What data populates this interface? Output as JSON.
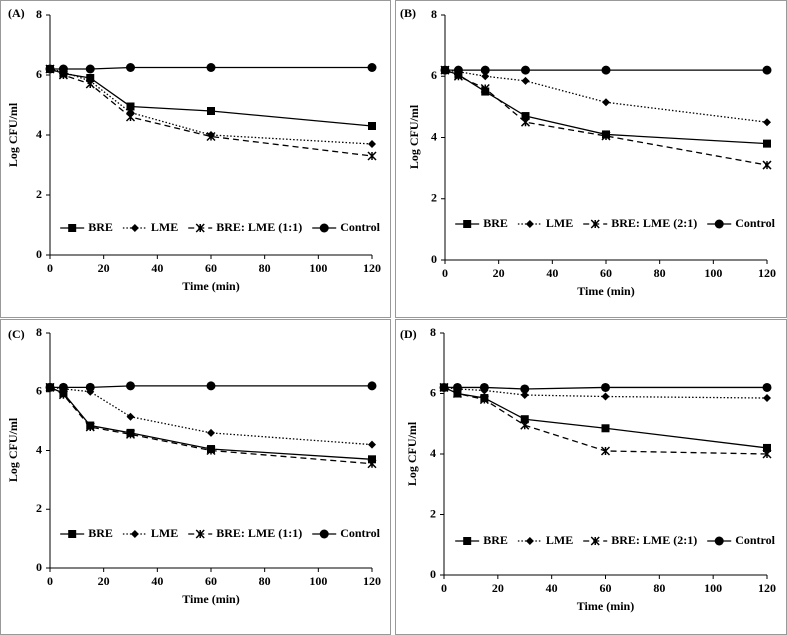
{
  "chart_data": [
    {
      "type": "line",
      "panel_label": "(A)",
      "x_label": "Time (min)",
      "y_label": "Log CFU/ml",
      "x": [
        0,
        5,
        15,
        30,
        60,
        120
      ],
      "xlim": [
        0,
        120
      ],
      "xticks": [
        0,
        20,
        40,
        60,
        80,
        100,
        120
      ],
      "ylim": [
        0,
        8
      ],
      "yticks": [
        0,
        2,
        4,
        6,
        8
      ],
      "legend": "bottom",
      "series": [
        {
          "name": "BRE",
          "color": "#000000",
          "dash": "solid",
          "marker": "square",
          "values": [
            6.2,
            6.05,
            5.9,
            4.95,
            4.8,
            4.3
          ]
        },
        {
          "name": "LME",
          "color": "#000000",
          "dash": "dotted",
          "marker": "diamond",
          "values": [
            6.2,
            6.1,
            5.8,
            4.75,
            4.0,
            3.7
          ]
        },
        {
          "name": "BRE: LME (1:1)",
          "color": "#000000",
          "dash": "dashed",
          "marker": "star",
          "values": [
            6.2,
            6.0,
            5.7,
            4.6,
            3.95,
            3.3
          ]
        },
        {
          "name": "Control",
          "color": "#000000",
          "dash": "solid",
          "marker": "circle",
          "values": [
            6.2,
            6.2,
            6.2,
            6.25,
            6.25,
            6.25
          ]
        }
      ]
    },
    {
      "type": "line",
      "panel_label": "(B)",
      "x_label": "Time (min)",
      "y_label": "Log CFU/ml",
      "x": [
        0,
        5,
        15,
        30,
        60,
        120
      ],
      "xlim": [
        0,
        120
      ],
      "xticks": [
        0,
        20,
        40,
        60,
        80,
        100,
        120
      ],
      "ylim": [
        0,
        8
      ],
      "yticks": [
        0,
        2,
        4,
        6,
        8
      ],
      "legend": "bottom",
      "series": [
        {
          "name": "BRE",
          "color": "#000000",
          "dash": "solid",
          "marker": "square",
          "values": [
            6.2,
            6.05,
            5.5,
            4.7,
            4.1,
            3.8
          ]
        },
        {
          "name": "LME",
          "color": "#000000",
          "dash": "dotted",
          "marker": "diamond",
          "values": [
            6.2,
            6.15,
            6.0,
            5.85,
            5.15,
            4.5
          ]
        },
        {
          "name": "BRE: LME (2:1)",
          "color": "#000000",
          "dash": "dashed",
          "marker": "star",
          "values": [
            6.2,
            6.0,
            5.6,
            4.5,
            4.05,
            3.1
          ]
        },
        {
          "name": "Control",
          "color": "#000000",
          "dash": "solid",
          "marker": "circle",
          "values": [
            6.2,
            6.2,
            6.2,
            6.2,
            6.2,
            6.2
          ]
        }
      ]
    },
    {
      "type": "line",
      "panel_label": "(C)",
      "x_label": "Time (min)",
      "y_label": "Log CFU/ml",
      "x": [
        0,
        5,
        15,
        30,
        60,
        120
      ],
      "xlim": [
        0,
        120
      ],
      "xticks": [
        0,
        20,
        40,
        60,
        80,
        100,
        120
      ],
      "ylim": [
        0,
        8
      ],
      "yticks": [
        0,
        2,
        4,
        6,
        8
      ],
      "legend": "bottom",
      "series": [
        {
          "name": "BRE",
          "color": "#000000",
          "dash": "solid",
          "marker": "square",
          "values": [
            6.15,
            5.95,
            4.85,
            4.6,
            4.05,
            3.7
          ]
        },
        {
          "name": "LME",
          "color": "#000000",
          "dash": "dotted",
          "marker": "diamond",
          "values": [
            6.15,
            6.1,
            6.0,
            5.15,
            4.6,
            4.2
          ]
        },
        {
          "name": "BRE: LME (1:1)",
          "color": "#000000",
          "dash": "dashed",
          "marker": "star",
          "values": [
            6.15,
            5.9,
            4.8,
            4.55,
            4.0,
            3.55
          ]
        },
        {
          "name": "Control",
          "color": "#000000",
          "dash": "solid",
          "marker": "circle",
          "values": [
            6.15,
            6.15,
            6.15,
            6.2,
            6.2,
            6.2
          ]
        }
      ]
    },
    {
      "type": "line",
      "panel_label": "(D)",
      "x_label": "Time (min)",
      "y_label": "Log CFU/ml",
      "x": [
        0,
        5,
        15,
        30,
        60,
        120
      ],
      "xlim": [
        0,
        120
      ],
      "xticks": [
        0,
        20,
        40,
        60,
        80,
        100,
        120
      ],
      "ylim": [
        0,
        8
      ],
      "yticks": [
        0,
        2,
        4,
        6,
        8
      ],
      "legend": "bottom",
      "series": [
        {
          "name": "BRE",
          "color": "#000000",
          "dash": "solid",
          "marker": "square",
          "values": [
            6.2,
            6.0,
            5.85,
            5.15,
            4.85,
            4.2
          ]
        },
        {
          "name": "LME",
          "color": "#000000",
          "dash": "dotted",
          "marker": "diamond",
          "values": [
            6.2,
            6.15,
            6.1,
            5.95,
            5.9,
            5.85
          ]
        },
        {
          "name": "BRE: LME (2:1)",
          "color": "#000000",
          "dash": "dashed",
          "marker": "star",
          "values": [
            6.2,
            6.0,
            5.8,
            4.95,
            4.1,
            4.0
          ]
        },
        {
          "name": "Control",
          "color": "#000000",
          "dash": "solid",
          "marker": "circle",
          "values": [
            6.2,
            6.2,
            6.2,
            6.15,
            6.2,
            6.2
          ]
        }
      ]
    }
  ]
}
